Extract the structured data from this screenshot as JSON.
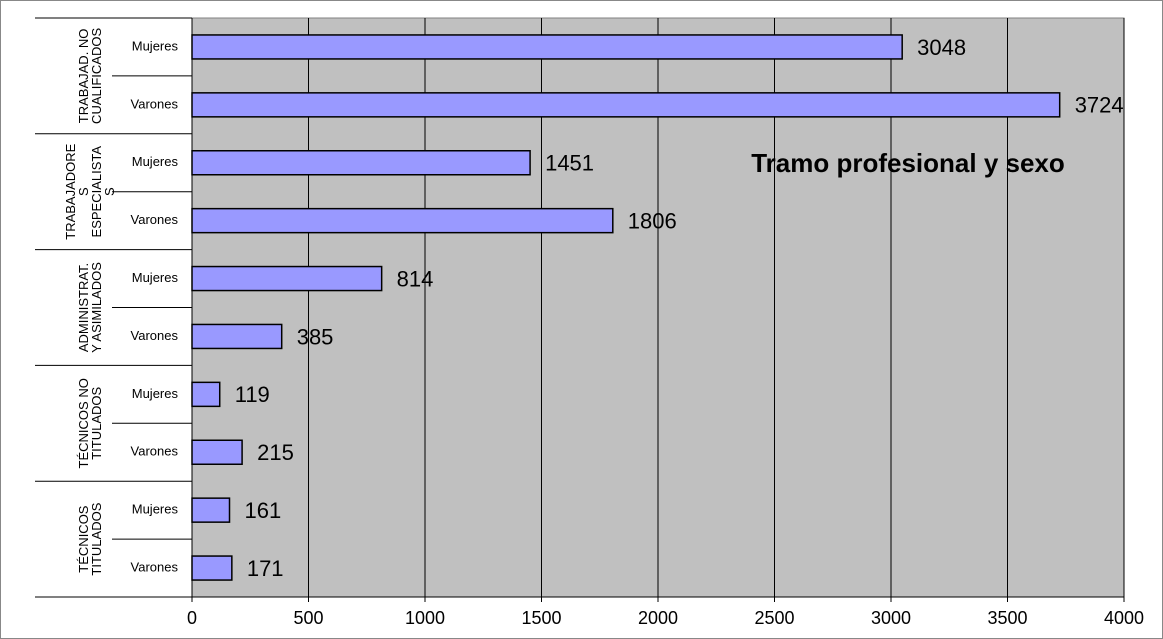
{
  "chart_data": {
    "type": "bar",
    "orientation": "horizontal",
    "title": "Tramo profesional y sexo",
    "groups": [
      {
        "label": [
          "TRABAJAD. NO",
          "CUALIFICADOS"
        ],
        "categories": [
          "Mujeres",
          "Varones"
        ],
        "values": [
          3048,
          3724
        ]
      },
      {
        "label": [
          "TRABAJADORE",
          "S",
          "ESPECIALISTA",
          "S"
        ],
        "categories": [
          "Mujeres",
          "Varones"
        ],
        "values": [
          1451,
          1806
        ]
      },
      {
        "label": [
          "ADMINISTRAT.",
          "Y ASIMILADOS"
        ],
        "categories": [
          "Mujeres",
          "Varones"
        ],
        "values": [
          814,
          385
        ]
      },
      {
        "label": [
          "TÉCNICOS NO",
          "TITULADOS"
        ],
        "categories": [
          "Mujeres",
          "Varones"
        ],
        "values": [
          119,
          215
        ]
      },
      {
        "label": [
          "TÉCNICOS",
          "TITULADOS"
        ],
        "categories": [
          "Mujeres",
          "Varones"
        ],
        "values": [
          161,
          171
        ]
      }
    ],
    "color": "#9999ff",
    "plot_background": "#c0c0c0",
    "xlim": [
      0,
      4000
    ],
    "xticks": [
      0,
      500,
      1000,
      1500,
      2000,
      2500,
      3000,
      3500,
      4000
    ],
    "grid": true
  }
}
